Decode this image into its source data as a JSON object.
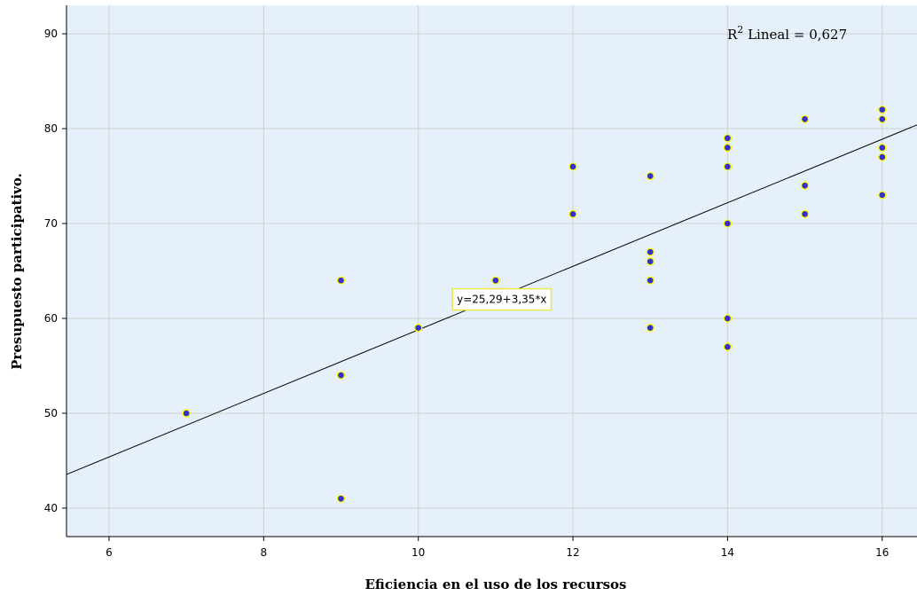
{
  "chart_data": {
    "type": "scatter",
    "xlabel": "Eficiencia en el uso de los recursos",
    "ylabel": "Presupuesto participativo.",
    "xlim": [
      5.45,
      16.45
    ],
    "ylim": [
      37,
      93
    ],
    "xticks": [
      6,
      8,
      10,
      12,
      14,
      16
    ],
    "yticks": [
      40,
      50,
      60,
      70,
      80,
      90
    ],
    "xtick_labels": [
      "6",
      "8",
      "10",
      "12",
      "14",
      "16"
    ],
    "ytick_labels": [
      "40",
      "50",
      "60",
      "70",
      "80",
      "90"
    ],
    "grid": true,
    "colors": {
      "plot_background": "#e6f0fa",
      "grid": "#d0d0d0",
      "point_fill": "#3333cc",
      "point_stroke": "#ffff00",
      "fit_line": "#000000",
      "label_border": "#e8e84a"
    },
    "points": [
      {
        "x": 7,
        "y": 50
      },
      {
        "x": 9,
        "y": 64
      },
      {
        "x": 9,
        "y": 54
      },
      {
        "x": 9,
        "y": 41
      },
      {
        "x": 10,
        "y": 59
      },
      {
        "x": 11,
        "y": 64
      },
      {
        "x": 12,
        "y": 76
      },
      {
        "x": 12,
        "y": 71
      },
      {
        "x": 13,
        "y": 75
      },
      {
        "x": 13,
        "y": 67
      },
      {
        "x": 13,
        "y": 66
      },
      {
        "x": 13,
        "y": 64
      },
      {
        "x": 13,
        "y": 59
      },
      {
        "x": 14,
        "y": 79
      },
      {
        "x": 14,
        "y": 78
      },
      {
        "x": 14,
        "y": 76
      },
      {
        "x": 14,
        "y": 70
      },
      {
        "x": 14,
        "y": 60
      },
      {
        "x": 14,
        "y": 57
      },
      {
        "x": 15,
        "y": 81
      },
      {
        "x": 15,
        "y": 74
      },
      {
        "x": 15,
        "y": 71
      },
      {
        "x": 16,
        "y": 82
      },
      {
        "x": 16,
        "y": 81
      },
      {
        "x": 16,
        "y": 78
      },
      {
        "x": 16,
        "y": 77
      },
      {
        "x": 16,
        "y": 73
      }
    ],
    "fit_line": {
      "intercept": 25.29,
      "slope": 3.35,
      "equation_label": "y=25,29+3,35*x",
      "label_x": 11.08,
      "label_y": 62.0
    },
    "r_squared": {
      "prefix": "R",
      "superscript": "2",
      "text": " Lineal = 0,627"
    }
  }
}
